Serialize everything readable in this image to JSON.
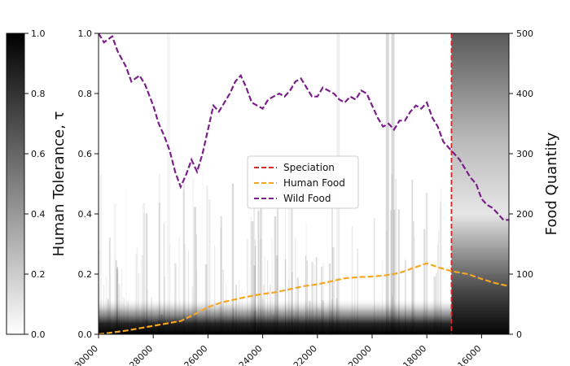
{
  "chart_data": {
    "type": "line",
    "title": "",
    "xlabel": "",
    "ylabel_left": "Human Tolerance, τ",
    "ylabel_right": "Food Quantity",
    "x_reversed": true,
    "xlim": [
      30000,
      15000
    ],
    "ylim_left": [
      0.0,
      1.0
    ],
    "ylim_right": [
      0,
      500
    ],
    "x_ticks": [
      30000,
      28000,
      26000,
      24000,
      22000,
      20000,
      18000,
      16000
    ],
    "x_tick_labels": [
      "30000",
      "28000",
      "26000",
      "24000",
      "22000",
      "20000",
      "18000",
      "16000"
    ],
    "y_left_ticks": [
      0.0,
      0.2,
      0.4,
      0.6,
      0.8,
      1.0
    ],
    "y_left_tick_labels": [
      "0.0",
      "0.2",
      "0.4",
      "0.6",
      "0.8",
      "1.0"
    ],
    "y_right_ticks": [
      0,
      100,
      200,
      300,
      400,
      500
    ],
    "y_right_tick_labels": [
      "0",
      "100",
      "200",
      "300",
      "400",
      "500"
    ],
    "colorbar": {
      "min": 0.0,
      "max": 1.0,
      "ticks": [
        0.0,
        0.2,
        0.4,
        0.6,
        0.8,
        1.0
      ],
      "tick_labels": [
        "0.0",
        "0.2",
        "0.4",
        "0.6",
        "0.8",
        "1.0"
      ],
      "colormap": "gray_r"
    },
    "legend_position": "center",
    "speciation_x": 17100,
    "series": [
      {
        "name": "Speciation",
        "kind": "vline",
        "color": "#d62728",
        "x": 17100
      },
      {
        "name": "Human Food",
        "kind": "line",
        "axis": "right",
        "color": "#f5a623",
        "x": [
          30000,
          29500,
          29000,
          28500,
          28000,
          27500,
          27000,
          26500,
          26000,
          25500,
          25000,
          24500,
          24000,
          23500,
          23000,
          22500,
          22000,
          21500,
          21000,
          20500,
          20000,
          19500,
          19000,
          18500,
          18000,
          17500,
          17100,
          16500,
          16000,
          15500,
          15000
        ],
        "values": [
          0,
          3,
          6,
          10,
          14,
          18,
          22,
          33,
          45,
          53,
          58,
          63,
          67,
          70,
          75,
          80,
          83,
          88,
          93,
          95,
          96,
          98,
          102,
          110,
          118,
          110,
          105,
          100,
          92,
          85,
          80
        ]
      },
      {
        "name": "Wild Food",
        "kind": "line",
        "axis": "right",
        "color": "#7b1f8a",
        "x": [
          30000,
          29800,
          29500,
          29300,
          29000,
          28800,
          28500,
          28300,
          28000,
          27800,
          27600,
          27400,
          27200,
          27000,
          26800,
          26600,
          26400,
          26200,
          26000,
          25800,
          25600,
          25400,
          25200,
          25000,
          24800,
          24600,
          24400,
          24200,
          24000,
          23800,
          23600,
          23400,
          23200,
          23000,
          22800,
          22600,
          22400,
          22200,
          22000,
          21800,
          21600,
          21400,
          21200,
          21000,
          20800,
          20600,
          20400,
          20200,
          20000,
          19800,
          19600,
          19400,
          19200,
          19000,
          18800,
          18600,
          18400,
          18200,
          18000,
          17800,
          17600,
          17400,
          17200,
          17000,
          16800,
          16600,
          16400,
          16200,
          16000,
          15800,
          15600,
          15400,
          15200,
          15000
        ],
        "values": [
          500,
          485,
          495,
          470,
          445,
          420,
          430,
          415,
          380,
          350,
          330,
          305,
          270,
          245,
          265,
          290,
          270,
          300,
          340,
          380,
          370,
          385,
          400,
          420,
          430,
          410,
          385,
          380,
          375,
          390,
          395,
          400,
          395,
          405,
          420,
          425,
          410,
          395,
          395,
          410,
          405,
          400,
          390,
          385,
          395,
          390,
          405,
          400,
          380,
          360,
          345,
          350,
          340,
          355,
          355,
          370,
          380,
          375,
          385,
          360,
          345,
          320,
          310,
          300,
          290,
          275,
          260,
          250,
          225,
          215,
          210,
          200,
          190,
          190
        ]
      }
    ]
  }
}
